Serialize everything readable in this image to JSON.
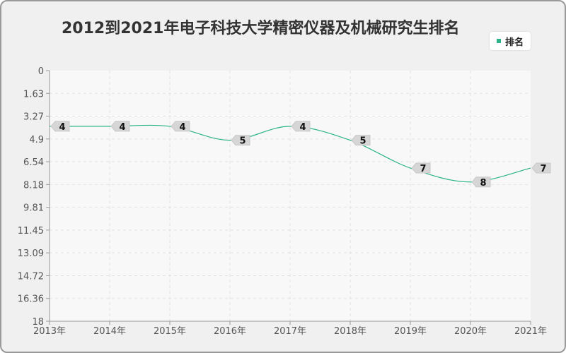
{
  "chart_data": {
    "type": "line",
    "title": "2012到2021年电子科技大学精密仪器及机械研究生排名",
    "categories": [
      "2013年",
      "2014年",
      "2015年",
      "2016年",
      "2017年",
      "2018年",
      "2019年",
      "2020年",
      "2021年"
    ],
    "series": [
      {
        "name": "排名",
        "values": [
          4,
          4,
          4,
          5,
          4,
          5,
          7,
          8,
          7
        ],
        "color": "#2db38a"
      }
    ],
    "y_tick_labels": [
      "0",
      "1.63",
      "3.27",
      "4.9",
      "6.54",
      "8.18",
      "9.81",
      "11.45",
      "13.09",
      "14.72",
      "16.36",
      "18"
    ],
    "ylim": [
      0,
      18
    ],
    "y_inverted": true,
    "grid": true,
    "legend_position": "top-right"
  }
}
